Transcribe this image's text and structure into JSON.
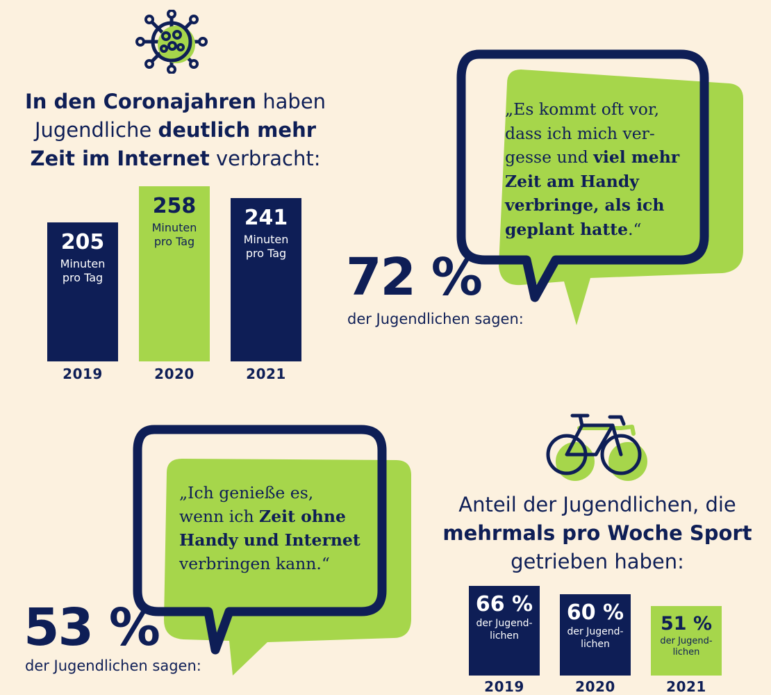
{
  "top_headline": {
    "b1": "In den Coronajahren",
    "t1": " haben",
    "t2": "Jugendliche ",
    "b2": "deutlich mehr",
    "b3": "Zeit im Internet",
    "t3": " verbracht:"
  },
  "quote1": {
    "l1": "„Es kommt oft vor,",
    "l2": "dass ich mich ver-",
    "l3a": "gesse und ",
    "l3b": "viel mehr",
    "l4": "Zeit am Handy",
    "l5": "verbringe, als ich",
    "l6a": "geplant hatte",
    "l6b": ".“",
    "pct": "72 %",
    "says": "der Jugendlichen sagen:"
  },
  "quote2": {
    "l1": "„Ich genieße es,",
    "l2a": "wenn ich ",
    "l2b": "Zeit ohne",
    "l3": "Handy und Internet",
    "l4": "verbringen kann.“",
    "pct": "53 %",
    "says": "der Jugendlichen sagen:"
  },
  "sport_headline": {
    "t1": "Anteil der Jugendlichen, die",
    "b1": "mehrmals pro Woche Sport",
    "t2": "getrieben haben:"
  },
  "chart_data": [
    {
      "type": "bar",
      "categories": [
        "2019",
        "2020",
        "2021"
      ],
      "values": [
        205,
        258,
        241
      ],
      "value_labels": [
        "205",
        "258",
        "241"
      ],
      "unit_line1": "Minuten",
      "unit_line2": "pro Tag",
      "colors": [
        "#0e1e56",
        "#a6d64b",
        "#0e1e56"
      ],
      "ylim": [
        0,
        258
      ]
    },
    {
      "type": "bar",
      "categories": [
        "2019",
        "2020",
        "2021"
      ],
      "values": [
        66,
        60,
        51
      ],
      "value_labels": [
        "66 %",
        "60 %",
        "51 %"
      ],
      "unit_line1": "der Jugend-",
      "unit_line2": "lichen",
      "colors": [
        "#0e1e56",
        "#0e1e56",
        "#a6d64b"
      ],
      "ylim": [
        0,
        66
      ]
    }
  ],
  "colors": {
    "navy": "#0e1e56",
    "green": "#a6d64b",
    "background": "#fcf1df"
  },
  "icons": [
    "virus-icon",
    "bicycle-icon",
    "speech-bubble-icon"
  ]
}
